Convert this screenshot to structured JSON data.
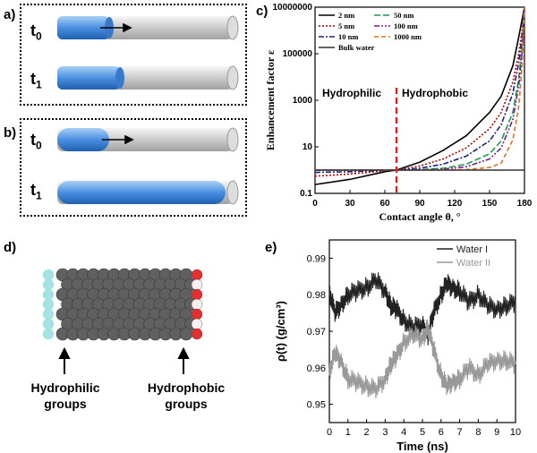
{
  "panels": {
    "a": {
      "label": "a)",
      "t0": "t",
      "t0_sub": "0",
      "t1": "t",
      "t1_sub": "1"
    },
    "b": {
      "label": "b)",
      "t0": "t",
      "t0_sub": "0",
      "t1": "t",
      "t1_sub": "1"
    },
    "c": {
      "label": "c)",
      "region_left": "Hydrophilic",
      "region_right": "Hydrophobic"
    },
    "d": {
      "label": "d)",
      "left_group": [
        "Hydrophilic",
        "groups"
      ],
      "right_group": [
        "Hydrophobic",
        "groups"
      ]
    },
    "e": {
      "label": "e)"
    }
  },
  "colors": {
    "water_fill": "#4a90e0",
    "tube": "#cfcfcf",
    "dashed_line": "#e02020",
    "carbon": "#5a5a5a",
    "hydrophilic_atoms": "#a8e0e8",
    "hydrophobic_atoms": "#e03030"
  },
  "chart_data": [
    {
      "type": "line",
      "title": "",
      "xlabel": "Contact angle θ, °",
      "ylabel": "Enhancement factor ε",
      "xlim": [
        0,
        180
      ],
      "ylim": [
        0.1,
        10000000
      ],
      "yscale": "log",
      "xticks": [
        "0",
        "30",
        "60",
        "90",
        "120",
        "150",
        "180"
      ],
      "yticks": [
        "0.1",
        "10",
        "1000",
        "100000",
        "10000000"
      ],
      "vline_x": 70,
      "legend": "top-left",
      "series": [
        {
          "name": "2 nm",
          "color": "#000000",
          "dash": "",
          "x": [
            0,
            30,
            60,
            70,
            90,
            110,
            130,
            150,
            160,
            170,
            175,
            178,
            180
          ],
          "y": [
            0.24,
            0.4,
            0.85,
            1.0,
            2.2,
            7,
            30,
            300,
            1500,
            30000,
            500000,
            3000000,
            10000000
          ]
        },
        {
          "name": "5 nm",
          "color": "#c00000",
          "dash": "2,2",
          "x": [
            0,
            30,
            60,
            70,
            90,
            110,
            130,
            150,
            160,
            170,
            175,
            178,
            180
          ],
          "y": [
            0.55,
            0.68,
            0.93,
            1.0,
            1.5,
            3,
            9,
            60,
            300,
            6000,
            100000,
            1000000,
            10000000
          ]
        },
        {
          "name": "10 nm",
          "color": "#202080",
          "dash": "6,2,2,2",
          "x": [
            0,
            30,
            60,
            70,
            90,
            110,
            130,
            150,
            160,
            170,
            175,
            178,
            180
          ],
          "y": [
            0.8,
            0.85,
            0.97,
            1.0,
            1.2,
            1.8,
            4,
            18,
            90,
            2000,
            40000,
            600000,
            10000000
          ]
        },
        {
          "name": "50 nm",
          "color": "#1a9a50",
          "dash": "7,3",
          "x": [
            0,
            30,
            60,
            70,
            90,
            110,
            130,
            150,
            160,
            170,
            175,
            178,
            180
          ],
          "y": [
            1.0,
            1.0,
            1.0,
            1.0,
            1.05,
            1.2,
            1.8,
            5,
            18,
            300,
            8000,
            200000,
            10000000
          ]
        },
        {
          "name": "100 nm",
          "color": "#7a1a8a",
          "dash": "6,2,2,2,2,2",
          "x": [
            0,
            30,
            60,
            70,
            90,
            110,
            130,
            150,
            160,
            170,
            175,
            178,
            180
          ],
          "y": [
            1.0,
            1.0,
            1.0,
            1.0,
            1.02,
            1.1,
            1.4,
            3,
            9,
            150,
            4000,
            120000,
            10000000
          ]
        },
        {
          "name": "1000 nm",
          "color": "#e07020",
          "dash": "5,3",
          "x": [
            0,
            30,
            60,
            70,
            90,
            110,
            130,
            150,
            160,
            170,
            175,
            178,
            180
          ],
          "y": [
            1.0,
            1.0,
            1.0,
            1.0,
            1.0,
            1.02,
            1.05,
            1.3,
            2,
            20,
            500,
            30000,
            10000000
          ]
        },
        {
          "name": "Bulk water",
          "color": "#333333",
          "dash": "",
          "x": [
            0,
            180
          ],
          "y": [
            1.0,
            1.0
          ]
        }
      ]
    },
    {
      "type": "line",
      "title": "",
      "xlabel": "Time (ns)",
      "ylabel": "ρ(t) (g/cm³)",
      "xlim": [
        0,
        10
      ],
      "ylim": [
        0.945,
        0.995
      ],
      "xticks": [
        "0",
        "1",
        "2",
        "3",
        "4",
        "5",
        "6",
        "7",
        "8",
        "9",
        "10"
      ],
      "yticks": [
        "0.95",
        "0.96",
        "0.97",
        "0.98",
        "0.99"
      ],
      "legend": "top-right",
      "series": [
        {
          "name": "Water I",
          "color": "#222222",
          "x": [
            0,
            0.3,
            0.6,
            1.0,
            1.5,
            2.0,
            2.5,
            3.0,
            3.3,
            3.6,
            4.0,
            4.5,
            5.0,
            5.3,
            5.6,
            6.0,
            6.3,
            6.6,
            7.0,
            7.5,
            8.0,
            8.5,
            9.0,
            9.5,
            10
          ],
          "y": [
            0.981,
            0.975,
            0.977,
            0.98,
            0.981,
            0.982,
            0.984,
            0.981,
            0.977,
            0.976,
            0.973,
            0.971,
            0.972,
            0.969,
            0.975,
            0.98,
            0.983,
            0.982,
            0.981,
            0.978,
            0.98,
            0.977,
            0.976,
            0.977,
            0.978
          ]
        },
        {
          "name": "Water II",
          "color": "#999999",
          "x": [
            0,
            0.3,
            0.6,
            1.0,
            1.5,
            2.0,
            2.5,
            3.0,
            3.3,
            3.6,
            4.0,
            4.5,
            5.0,
            5.3,
            5.6,
            6.0,
            6.3,
            6.6,
            7.0,
            7.5,
            8.0,
            8.5,
            9.0,
            9.5,
            10
          ],
          "y": [
            0.959,
            0.964,
            0.962,
            0.957,
            0.956,
            0.955,
            0.954,
            0.957,
            0.961,
            0.963,
            0.967,
            0.969,
            0.968,
            0.971,
            0.965,
            0.958,
            0.955,
            0.956,
            0.957,
            0.96,
            0.958,
            0.961,
            0.962,
            0.962,
            0.961
          ]
        }
      ]
    }
  ]
}
